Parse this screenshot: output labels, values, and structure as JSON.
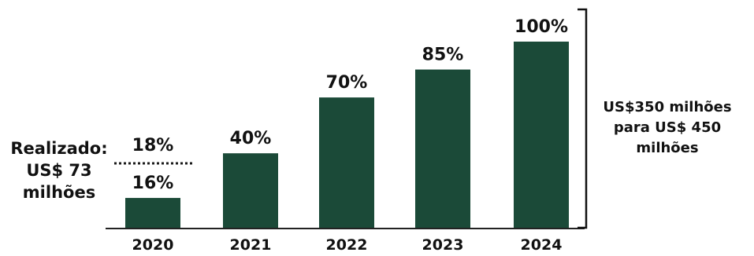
{
  "chart_data": {
    "type": "bar",
    "categories": [
      "2020",
      "2021",
      "2022",
      "2023",
      "2024"
    ],
    "values": [
      16,
      40,
      70,
      85,
      100
    ],
    "value_labels": [
      "16%",
      "40%",
      "70%",
      "85%",
      "100%"
    ],
    "ylim": [
      0,
      100
    ],
    "title": "",
    "xlabel": "",
    "ylabel": "",
    "grid": false,
    "bar_color": "#1b4a38",
    "target_marker": {
      "category": "2020",
      "value": 18,
      "label": "18%",
      "style": "dotted"
    },
    "left_annotation": [
      "Realizado:",
      "US$ 73",
      "milhões"
    ],
    "right_annotation": [
      "US$350 milhões",
      "para US$ 450",
      "milhões"
    ]
  }
}
